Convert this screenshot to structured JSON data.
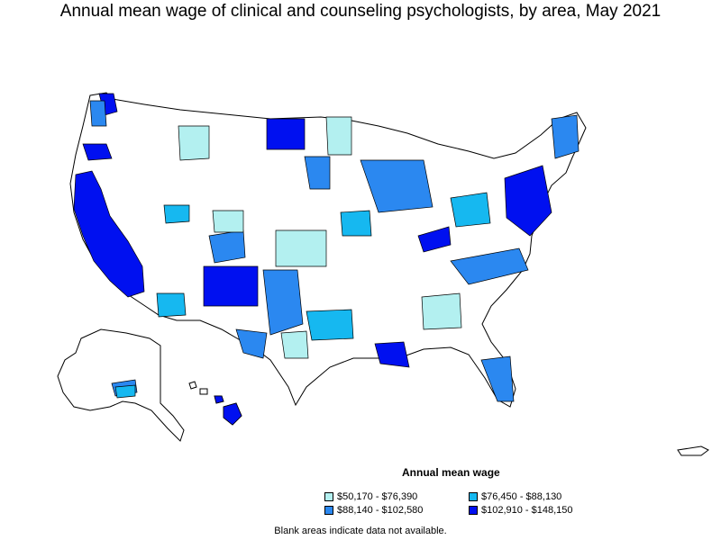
{
  "title": "Annual mean wage of clinical and counseling psychologists, by area, May 2021",
  "legend": {
    "title": "Annual mean wage",
    "items": [
      {
        "label": "$50,170 - $76,390",
        "color": "#b3f0f0"
      },
      {
        "label": "$76,450 - $88,130",
        "color": "#16b8f0"
      },
      {
        "label": "$88,140 - $102,580",
        "color": "#2b88f0"
      },
      {
        "label": "$102,910 - $148,150",
        "color": "#0010f0"
      }
    ]
  },
  "note": "Blank areas indicate data not available.",
  "colors": {
    "background": "#ffffff",
    "outline": "#000000",
    "no_data": "#ffffff"
  }
}
